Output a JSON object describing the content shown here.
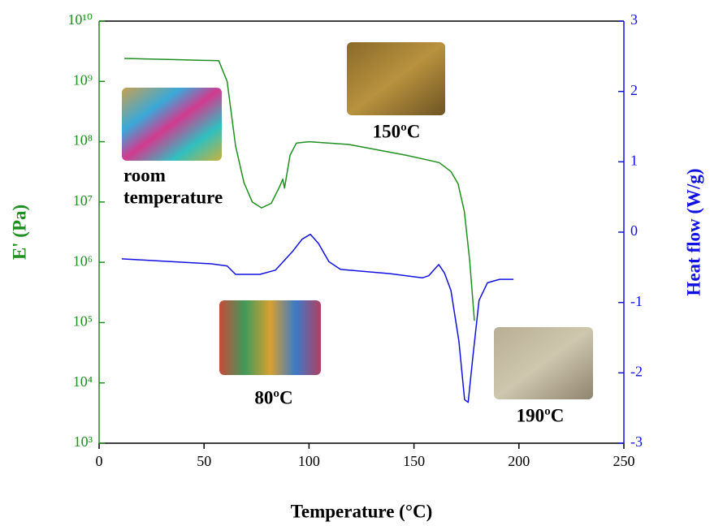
{
  "chart_data": {
    "type": "line",
    "x_label": "Temperature (°C)",
    "y_label": "E' (Pa)",
    "y2_label": "Heat flow (W/g)",
    "xlim": [
      0,
      250
    ],
    "xticks": [
      0,
      50,
      100,
      150,
      200,
      250
    ],
    "ylim": [
      1000,
      10000000000
    ],
    "y_log": true,
    "yticks": [
      {
        "value": 1000,
        "label": "10³"
      },
      {
        "value": 10000,
        "label": "10⁴"
      },
      {
        "value": 100000,
        "label": "10⁵"
      },
      {
        "value": 1000000,
        "label": "10⁶"
      },
      {
        "value": 10000000,
        "label": "10⁷"
      },
      {
        "value": 100000000,
        "label": "10⁸"
      },
      {
        "value": 1000000000,
        "label": "10⁹"
      },
      {
        "value": 10000000000,
        "label": "10¹⁰"
      }
    ],
    "y_color": "#1f8f1f",
    "y2lim": [
      -3,
      3
    ],
    "y2ticks": [
      -3,
      -2,
      -1,
      0,
      1,
      2,
      3
    ],
    "y2_color": "#1010e0",
    "series": [
      {
        "color": "#1f8f1f",
        "x": [
          12,
          35,
          57,
          61,
          65,
          69,
          73,
          77.4,
          82,
          86,
          87.5,
          88.3,
          91,
          94,
          100,
          119,
          146,
          162,
          167.6,
          171,
          174,
          176.5,
          178.8
        ],
        "values": [
          2400000000,
          2300000000,
          2200000000,
          1000000000,
          85000000,
          21000000,
          10000000,
          8000000,
          9500000,
          18000000,
          24000000,
          17000000,
          60000000,
          95000000,
          100000000,
          90000000,
          60000000,
          45000000,
          32000000,
          20000000,
          7000000,
          1100000,
          107000
        ]
      },
      {
        "color": "#1010e0",
        "axis": "y2",
        "x": [
          10.8,
          53.4,
          61,
          65,
          76.6,
          84,
          92,
          96.7,
          100.6,
          104.5,
          109.5,
          115,
          138.5,
          154,
          157,
          161.8,
          164.5,
          167.6,
          171.4,
          174.1,
          175.8,
          178,
          181,
          185,
          190.8,
          197.4
        ],
        "values": [
          -0.38,
          -0.45,
          -0.48,
          -0.6,
          -0.6,
          -0.54,
          -0.28,
          -0.1,
          -0.03,
          -0.16,
          -0.42,
          -0.53,
          -0.59,
          -0.65,
          -0.62,
          -0.46,
          -0.58,
          -0.83,
          -1.55,
          -2.38,
          -2.42,
          -1.78,
          -0.97,
          -0.72,
          -0.67,
          -0.67
        ]
      }
    ],
    "annotations": [
      "room",
      "temperature",
      "150ºC",
      "80ºC",
      "190ºC"
    ]
  }
}
